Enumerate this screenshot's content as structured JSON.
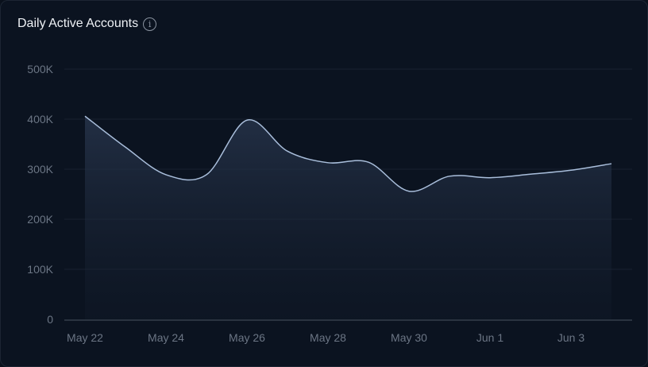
{
  "title": "Daily Active Accounts",
  "info_icon": "info-icon",
  "colors": {
    "line": "#a9bedb",
    "grid": "#18222f",
    "axis": "#4a5361"
  },
  "chart_data": {
    "type": "area",
    "title": "Daily Active Accounts",
    "xlabel": "",
    "ylabel": "",
    "ylim": [
      0,
      500000
    ],
    "yticks": [
      0,
      100000,
      200000,
      300000,
      400000,
      500000
    ],
    "ytick_labels": [
      "0",
      "100K",
      "200K",
      "300K",
      "400K",
      "500K"
    ],
    "x": [
      "May 22",
      "May 23",
      "May 24",
      "May 25",
      "May 26",
      "May 27",
      "May 28",
      "May 29",
      "May 30",
      "May 31",
      "Jun 1",
      "Jun 2",
      "Jun 3",
      "Jun 4"
    ],
    "xtick_labels": [
      "May 22",
      "May 24",
      "May 26",
      "May 28",
      "May 30",
      "Jun 1",
      "Jun 3"
    ],
    "xtick_index": [
      0,
      2,
      4,
      6,
      8,
      10,
      12
    ],
    "values": [
      406000,
      344000,
      289000,
      289000,
      398000,
      336000,
      313000,
      314000,
      256000,
      286000,
      283000,
      290000,
      298000,
      311000
    ],
    "grid": true,
    "legend": "none"
  }
}
